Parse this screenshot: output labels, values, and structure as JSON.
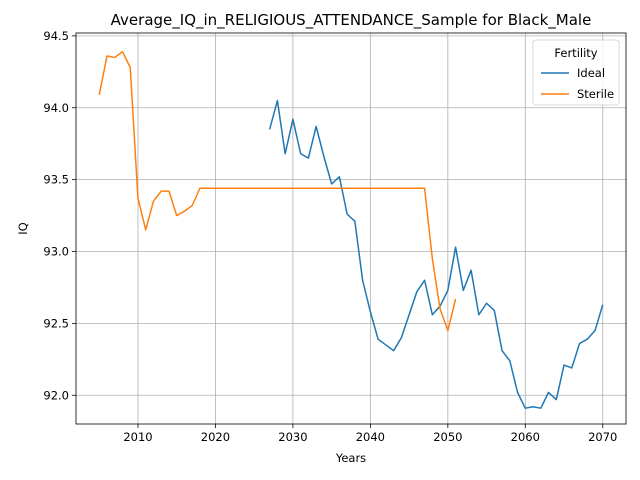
{
  "chart_data": {
    "type": "line",
    "title": "Average_IQ_in_RELIGIOUS_ATTENDANCE_Sample for Black_Male",
    "xlabel": "Years",
    "ylabel": "IQ",
    "xlim": [
      2002,
      2073
    ],
    "ylim": [
      91.8,
      94.52
    ],
    "xticks": [
      2010,
      2020,
      2030,
      2040,
      2050,
      2060,
      2070
    ],
    "yticks": [
      92.0,
      92.5,
      93.0,
      93.5,
      94.0,
      94.5
    ],
    "xtick_labels": [
      "2010",
      "2020",
      "2030",
      "2040",
      "2050",
      "2060",
      "2070"
    ],
    "ytick_labels": [
      "92.0",
      "92.5",
      "93.0",
      "93.5",
      "94.0",
      "94.5"
    ],
    "grid": true,
    "legend": {
      "title": "Fertility",
      "position": "top-right"
    },
    "series": [
      {
        "name": "Ideal",
        "color": "#1f77b4",
        "x": [
          2027,
          2028,
          2029,
          2030,
          2031,
          2032,
          2033,
          2034,
          2035,
          2036,
          2037,
          2038,
          2039,
          2040,
          2041,
          2042,
          2043,
          2044,
          2045,
          2046,
          2047,
          2048,
          2049,
          2050,
          2051,
          2052,
          2053,
          2054,
          2055,
          2056,
          2057,
          2058,
          2059,
          2060,
          2061,
          2062,
          2063,
          2064,
          2065,
          2066,
          2067,
          2068,
          2069,
          2070
        ],
        "y": [
          93.85,
          94.05,
          93.68,
          93.92,
          93.68,
          93.65,
          93.87,
          93.66,
          93.47,
          93.52,
          93.26,
          93.21,
          92.8,
          92.58,
          92.39,
          92.35,
          92.31,
          92.4,
          92.56,
          92.72,
          92.8,
          92.56,
          92.62,
          92.73,
          93.03,
          92.73,
          92.87,
          92.56,
          92.64,
          92.59,
          92.31,
          92.24,
          92.02,
          91.91,
          91.92,
          91.91,
          92.02,
          91.97,
          92.21,
          92.19,
          92.36,
          92.39,
          92.45,
          92.63
        ]
      },
      {
        "name": "Sterile",
        "color": "#ff7f0e",
        "x": [
          2005,
          2006,
          2007,
          2008,
          2009,
          2010,
          2011,
          2012,
          2013,
          2014,
          2015,
          2016,
          2017,
          2018,
          2019,
          2020,
          2021,
          2022,
          2023,
          2024,
          2025,
          2026,
          2027,
          2028,
          2029,
          2030,
          2031,
          2032,
          2033,
          2034,
          2035,
          2036,
          2037,
          2038,
          2039,
          2040,
          2041,
          2042,
          2043,
          2044,
          2045,
          2046,
          2047,
          2048,
          2049,
          2050,
          2051
        ],
        "y": [
          94.09,
          94.36,
          94.35,
          94.39,
          94.28,
          93.37,
          93.15,
          93.35,
          93.42,
          93.42,
          93.25,
          93.28,
          93.32,
          93.44,
          93.44,
          93.44,
          93.44,
          93.44,
          93.44,
          93.44,
          93.44,
          93.44,
          93.44,
          93.44,
          93.44,
          93.44,
          93.44,
          93.44,
          93.44,
          93.44,
          93.44,
          93.44,
          93.44,
          93.44,
          93.44,
          93.44,
          93.44,
          93.44,
          93.44,
          93.44,
          93.44,
          93.44,
          93.44,
          92.95,
          92.6,
          92.45,
          92.67
        ]
      }
    ]
  }
}
